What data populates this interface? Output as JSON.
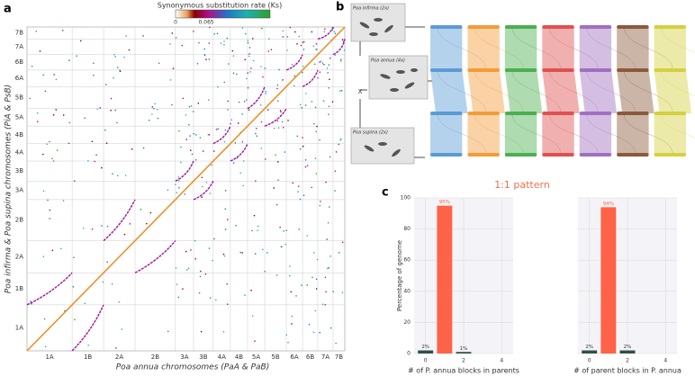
{
  "panel_a": {
    "label": "a",
    "colorbar_title": "Synonymous substitution rate (Ks)",
    "colorbar_ticks": [
      0,
      0.065
    ],
    "x_chromosomes": [
      "1A",
      "1B",
      "2A",
      "2B",
      "3A",
      "3B",
      "4A",
      "4B",
      "5A",
      "5B",
      "6A",
      "6B",
      "7A",
      "7B"
    ],
    "y_chromosomes": [
      "1A",
      "1B",
      "2A",
      "2B",
      "3A",
      "3B",
      "4A",
      "4B",
      "5A",
      "5B",
      "6A",
      "6B",
      "7A",
      "7B"
    ],
    "xlabel": "Poa annua chromosomes (PaA & PaB)",
    "ylabel": "Poa infirma & Poa supina chromosomes (PiA & PsB)"
  },
  "panel_b": {
    "label": "b",
    "species": [
      "Poa infirma (2x)",
      "Poa annua (4x)",
      "Poa supina (2x)"
    ],
    "cross": "X"
  },
  "panel_c": {
    "label": "c",
    "title": "1:1 pattern"
  },
  "chart_data": [
    {
      "type": "bar",
      "x": [
        0,
        1,
        2
      ],
      "values": [
        2,
        95,
        1
      ],
      "value_labels": [
        "2%",
        "95%",
        "1%"
      ],
      "colors": [
        "#2f4f4a",
        "#ff6347",
        "#2f4f4a"
      ],
      "xlim": [
        -0.6,
        4.6
      ],
      "xticks": [
        0,
        2,
        4
      ],
      "ylim": [
        0,
        100
      ],
      "yticks": [
        0,
        20,
        40,
        60,
        80,
        100
      ],
      "grid": true,
      "ylabel": "Percentage of genome",
      "xlabel": "# of P. annua blocks in parents"
    },
    {
      "type": "bar",
      "x": [
        0,
        1,
        2
      ],
      "values": [
        2,
        94,
        2
      ],
      "value_labels": [
        "2%",
        "94%",
        "2%"
      ],
      "colors": [
        "#2f4f4a",
        "#ff6347",
        "#2f4f4a"
      ],
      "xlim": [
        -0.6,
        4.6
      ],
      "xticks": [
        0,
        2,
        4
      ],
      "ylim": [
        0,
        100
      ],
      "yticks": [
        0,
        20,
        40,
        60,
        80,
        100
      ],
      "grid": true,
      "xlabel": "# of parent blocks in P. annua"
    }
  ]
}
